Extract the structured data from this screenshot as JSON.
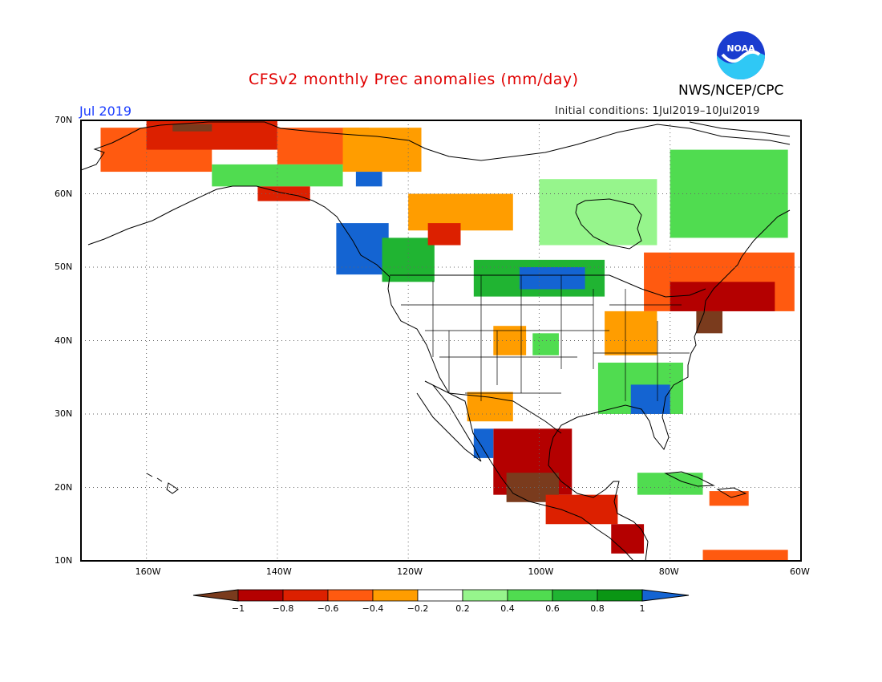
{
  "title": "CFSv2 monthly Prec anomalies (mm/day)",
  "agency": "NWS/NCEP/CPC",
  "logo_text": "NOAA",
  "month": "Jul 2019",
  "initial_conditions": "Initial conditions: 1Jul2019–10Jul2019",
  "map": {
    "lon_range": [
      -170,
      -60
    ],
    "lat_range": [
      10,
      70
    ],
    "lat_labels": [
      "70N",
      "60N",
      "50N",
      "40N",
      "30N",
      "20N",
      "10N"
    ],
    "lon_labels": [
      "160W",
      "140W",
      "120W",
      "100W",
      "80W",
      "60W"
    ]
  },
  "colorbar": {
    "labels": [
      "−1",
      "−0.8",
      "−0.6",
      "−0.4",
      "−0.2",
      "0.2",
      "0.4",
      "0.6",
      "0.8",
      "1"
    ],
    "colors": {
      "lt_neg1": "#7a3b1d",
      "neg1_neg08": "#b40000",
      "neg08_neg06": "#dc2000",
      "neg06_neg04": "#ff5a10",
      "neg04_neg02": "#ff9d00",
      "neg02_02": "#ffffff",
      "p02_p04": "#96f58c",
      "p04_p06": "#50dc50",
      "p06_p08": "#20b432",
      "p08_p1": "#0a9614",
      "gt_1": "#1464d2"
    }
  },
  "anomaly_regions": [
    {
      "name": "western-alaska-dry",
      "color": "#ff5a10",
      "lon": [
        -167,
        -150
      ],
      "lat": [
        63,
        69
      ]
    },
    {
      "name": "northern-alaska-dry",
      "color": "#dc2000",
      "lon": [
        -160,
        -140
      ],
      "lat": [
        66,
        70
      ]
    },
    {
      "name": "north-slope-dry",
      "color": "#7a3b1d",
      "lon": [
        -156,
        -150
      ],
      "lat": [
        68.5,
        69.5
      ]
    },
    {
      "name": "yukon-dry",
      "color": "#ff5a10",
      "lon": [
        -140,
        -126
      ],
      "lat": [
        64,
        69
      ]
    },
    {
      "name": "nwt-dry",
      "color": "#ff9d00",
      "lon": [
        -130,
        -118
      ],
      "lat": [
        63,
        69
      ]
    },
    {
      "name": "central-alaska-wet",
      "color": "#50dc50",
      "lon": [
        -150,
        -130
      ],
      "lat": [
        61,
        64
      ]
    },
    {
      "name": "alaska-wet-core",
      "color": "#1464d2",
      "lon": [
        -128,
        -124
      ],
      "lat": [
        61,
        63
      ]
    },
    {
      "name": "southern-alaska-dry",
      "color": "#dc2000",
      "lon": [
        -143,
        -135
      ],
      "lat": [
        59,
        61
      ]
    },
    {
      "name": "bc-wet",
      "color": "#1464d2",
      "lon": [
        -131,
        -123
      ],
      "lat": [
        49,
        56
      ]
    },
    {
      "name": "bc-wet-rim",
      "color": "#20b432",
      "lon": [
        -124,
        -116
      ],
      "lat": [
        48,
        54
      ]
    },
    {
      "name": "prairies-dry",
      "color": "#ff9d00",
      "lon": [
        -120,
        -104
      ],
      "lat": [
        55,
        60
      ]
    },
    {
      "name": "alberta-dry-core",
      "color": "#dc2000",
      "lon": [
        -117,
        -112
      ],
      "lat": [
        53,
        56
      ]
    },
    {
      "name": "northern-plains-wet",
      "color": "#20b432",
      "lon": [
        -110,
        -90
      ],
      "lat": [
        46,
        51
      ]
    },
    {
      "name": "northern-plains-wet-core",
      "color": "#1464d2",
      "lon": [
        -103,
        -93
      ],
      "lat": [
        47,
        50
      ]
    },
    {
      "name": "hudson-bay-wet",
      "color": "#96f58c",
      "lon": [
        -100,
        -82
      ],
      "lat": [
        53,
        62
      ]
    },
    {
      "name": "northeast-canada-wet",
      "color": "#50dc50",
      "lon": [
        -80,
        -62
      ],
      "lat": [
        54,
        66
      ]
    },
    {
      "name": "great-lakes-dry",
      "color": "#ff5a10",
      "lon": [
        -84,
        -61
      ],
      "lat": [
        44,
        52
      ]
    },
    {
      "name": "great-lakes-dry-core",
      "color": "#b40000",
      "lon": [
        -80,
        -64
      ],
      "lat": [
        44,
        48
      ]
    },
    {
      "name": "northeast-us-dry",
      "color": "#7a3b1d",
      "lon": [
        -76,
        -72
      ],
      "lat": [
        41,
        44
      ]
    },
    {
      "name": "ohio-valley-dry",
      "color": "#ff9d00",
      "lon": [
        -90,
        -82
      ],
      "lat": [
        38,
        44
      ]
    },
    {
      "name": "southeast-wet",
      "color": "#50dc50",
      "lon": [
        -91,
        -78
      ],
      "lat": [
        30,
        37
      ]
    },
    {
      "name": "southeast-wet-core",
      "color": "#1464d2",
      "lon": [
        -86,
        -80
      ],
      "lat": [
        30,
        34
      ]
    },
    {
      "name": "colorado-dry",
      "color": "#ff9d00",
      "lon": [
        -107,
        -102
      ],
      "lat": [
        38,
        42
      ]
    },
    {
      "name": "kansas-wet",
      "color": "#50dc50",
      "lon": [
        -101,
        -97
      ],
      "lat": [
        38,
        41
      ]
    },
    {
      "name": "arizona-dry",
      "color": "#ff9d00",
      "lon": [
        -111,
        -104
      ],
      "lat": [
        29,
        33
      ]
    },
    {
      "name": "mexico-dry",
      "color": "#b40000",
      "lon": [
        -107,
        -95
      ],
      "lat": [
        19,
        28
      ]
    },
    {
      "name": "central-mexico-very-dry",
      "color": "#7a3b1d",
      "lon": [
        -105,
        -97
      ],
      "lat": [
        18,
        22
      ]
    },
    {
      "name": "southern-mexico-dry",
      "color": "#dc2000",
      "lon": [
        -99,
        -88
      ],
      "lat": [
        15,
        19
      ]
    },
    {
      "name": "baja-wet",
      "color": "#1464d2",
      "lon": [
        -110,
        -107
      ],
      "lat": [
        24,
        28
      ]
    },
    {
      "name": "central-america-dry",
      "color": "#b40000",
      "lon": [
        -89,
        -84
      ],
      "lat": [
        11,
        15
      ]
    },
    {
      "name": "caribbean-wet",
      "color": "#50dc50",
      "lon": [
        -85,
        -75
      ],
      "lat": [
        19,
        22
      ]
    },
    {
      "name": "hispaniola-dry",
      "color": "#ff5a10",
      "lon": [
        -74,
        -68
      ],
      "lat": [
        17.5,
        19.5
      ]
    },
    {
      "name": "venezuela-dry",
      "color": "#ff5a10",
      "lon": [
        -75,
        -62
      ],
      "lat": [
        10,
        11.5
      ]
    }
  ]
}
